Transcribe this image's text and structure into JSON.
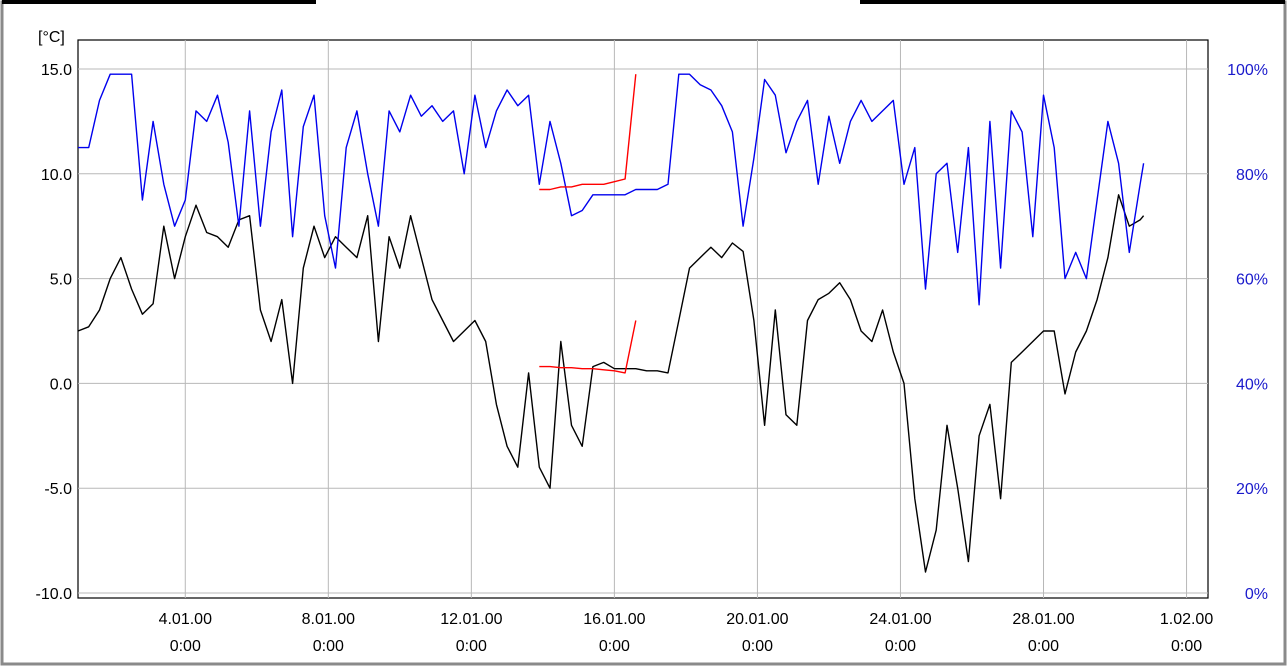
{
  "chart_data": {
    "type": "line",
    "y_unit_label": "[°C]",
    "y_left_range": [
      -10,
      15
    ],
    "y_left_ticks": [
      "15.0",
      "10.0",
      "5.0",
      "0.0",
      "-5.0",
      "-10.0"
    ],
    "y_left_tick_values": [
      15,
      10,
      5,
      0,
      -5,
      -10
    ],
    "y_right_range": [
      0,
      100
    ],
    "y_right_ticks": [
      "100%",
      "80%",
      "60%",
      "40%",
      "20%",
      "0%"
    ],
    "y_right_tick_values": [
      100,
      80,
      60,
      40,
      20,
      0
    ],
    "x_range_days": [
      1,
      32.6
    ],
    "x_ticks": [
      {
        "date": "4.01.00",
        "time": "0:00",
        "day": 4
      },
      {
        "date": "8.01.00",
        "time": "0:00",
        "day": 8
      },
      {
        "date": "12.01.00",
        "time": "0:00",
        "day": 12
      },
      {
        "date": "16.01.00",
        "time": "0:00",
        "day": 16
      },
      {
        "date": "20.01.00",
        "time": "0:00",
        "day": 20
      },
      {
        "date": "24.01.00",
        "time": "0:00",
        "day": 24
      },
      {
        "date": "28.01.00",
        "time": "0:00",
        "day": 28
      },
      {
        "date": "1.02.00",
        "time": "0:00",
        "day": 32
      }
    ],
    "grid": true,
    "series": [
      {
        "axis": "left",
        "color": "#000000",
        "x": [
          1.0,
          1.3,
          1.6,
          1.9,
          2.2,
          2.5,
          2.8,
          3.1,
          3.4,
          3.7,
          4.0,
          4.3,
          4.6,
          4.9,
          5.2,
          5.5,
          5.8,
          6.1,
          6.4,
          6.7,
          7.0,
          7.3,
          7.6,
          7.9,
          8.2,
          8.5,
          8.8,
          9.1,
          9.4,
          9.7,
          10.0,
          10.3,
          10.6,
          10.9,
          11.2,
          11.5,
          11.8,
          12.1,
          12.4,
          12.7,
          13.0,
          13.3,
          13.6,
          13.9,
          14.2,
          14.5,
          14.8,
          15.1,
          15.4,
          15.7,
          16.0,
          16.3,
          16.6,
          16.9,
          17.2,
          17.5,
          17.8,
          18.1,
          18.4,
          18.7,
          19.0,
          19.3,
          19.6,
          19.9,
          20.2,
          20.5,
          20.8,
          21.1,
          21.4,
          21.7,
          22.0,
          22.3,
          22.6,
          22.9,
          23.2,
          23.5,
          23.8,
          24.1,
          24.4,
          24.7,
          25.0,
          25.3,
          25.6,
          25.9,
          26.2,
          26.5,
          26.8,
          27.1,
          27.4,
          27.7,
          28.0,
          28.3,
          28.6,
          28.9,
          29.2,
          29.5,
          29.8,
          30.1,
          30.4,
          30.7,
          30.8
        ],
        "y": [
          2.5,
          2.7,
          3.5,
          5.0,
          6.0,
          4.5,
          3.3,
          3.8,
          7.5,
          5.0,
          7.0,
          8.5,
          7.2,
          7.0,
          6.5,
          7.8,
          8.0,
          3.5,
          2.0,
          4.0,
          0.0,
          5.5,
          7.5,
          6.0,
          7.0,
          6.5,
          6.0,
          8.0,
          2.0,
          7.0,
          5.5,
          8.0,
          6.0,
          4.0,
          3.0,
          2.0,
          2.5,
          3.0,
          2.0,
          -1.0,
          -3.0,
          -4.0,
          0.5,
          -4.0,
          -5.0,
          2.0,
          -2.0,
          -3.0,
          0.8,
          1.0,
          0.7,
          0.7,
          0.7,
          0.6,
          0.6,
          0.5,
          3.0,
          5.5,
          6.0,
          6.5,
          6.0,
          6.7,
          6.3,
          3.0,
          -2.0,
          3.5,
          -1.5,
          -2.0,
          3.0,
          4.0,
          4.3,
          4.8,
          4.0,
          2.5,
          2.0,
          3.5,
          1.5,
          0.0,
          -5.5,
          -9.0,
          -7.0,
          -2.0,
          -5.0,
          -8.5,
          -2.5,
          -1.0,
          -5.5,
          1.0,
          1.5,
          2.0,
          2.5,
          2.5,
          -0.5,
          1.5,
          2.5,
          4.0,
          6.0,
          9.0,
          7.5,
          7.8,
          8.0
        ]
      },
      {
        "axis": "right",
        "color": "#0000ee",
        "x": [
          1.0,
          1.3,
          1.6,
          1.9,
          2.2,
          2.5,
          2.8,
          3.1,
          3.4,
          3.7,
          4.0,
          4.3,
          4.6,
          4.9,
          5.2,
          5.5,
          5.8,
          6.1,
          6.4,
          6.7,
          7.0,
          7.3,
          7.6,
          7.9,
          8.2,
          8.5,
          8.8,
          9.1,
          9.4,
          9.7,
          10.0,
          10.3,
          10.6,
          10.9,
          11.2,
          11.5,
          11.8,
          12.1,
          12.4,
          12.7,
          13.0,
          13.3,
          13.6,
          13.9,
          14.2,
          14.5,
          14.8,
          15.1,
          15.4,
          15.7,
          16.0,
          16.3,
          16.6,
          16.9,
          17.2,
          17.5,
          17.8,
          18.1,
          18.4,
          18.7,
          19.0,
          19.3,
          19.6,
          19.9,
          20.2,
          20.5,
          20.8,
          21.1,
          21.4,
          21.7,
          22.0,
          22.3,
          22.6,
          22.9,
          23.2,
          23.5,
          23.8,
          24.1,
          24.4,
          24.7,
          25.0,
          25.3,
          25.6,
          25.9,
          26.2,
          26.5,
          26.8,
          27.1,
          27.4,
          27.7,
          28.0,
          28.3,
          28.6,
          28.9,
          29.2,
          29.5,
          29.8,
          30.1,
          30.4,
          30.7,
          30.8
        ],
        "y": [
          85,
          85,
          94,
          99,
          99,
          99,
          75,
          90,
          78,
          70,
          75,
          92,
          90,
          95,
          86,
          70,
          92,
          70,
          88,
          96,
          68,
          89,
          95,
          72,
          62,
          85,
          92,
          80,
          70,
          92,
          88,
          95,
          91,
          93,
          90,
          92,
          80,
          95,
          85,
          92,
          96,
          93,
          95,
          78,
          90,
          82,
          72,
          73,
          76,
          76,
          76,
          76,
          77,
          77,
          77,
          78,
          99,
          99,
          97,
          96,
          93,
          88,
          70,
          83,
          98,
          95,
          84,
          90,
          94,
          78,
          91,
          82,
          90,
          94,
          90,
          92,
          94,
          78,
          85,
          58,
          80,
          82,
          65,
          85,
          55,
          90,
          62,
          92,
          88,
          68,
          95,
          85,
          60,
          65,
          60,
          75,
          90,
          82,
          65,
          78,
          82
        ]
      },
      {
        "axis": "left",
        "color": "#ff0000",
        "x": [
          13.9,
          14.2,
          14.5,
          14.8,
          15.1,
          15.4,
          15.7,
          16.0,
          16.3,
          16.6
        ],
        "y": [
          0.8,
          0.8,
          0.75,
          0.75,
          0.7,
          0.7,
          0.65,
          0.6,
          0.5,
          3.0
        ]
      },
      {
        "axis": "right",
        "color": "#ff0000",
        "x": [
          13.9,
          14.2,
          14.5,
          14.8,
          15.1,
          15.4,
          15.7,
          16.0,
          16.3,
          16.6
        ],
        "y": [
          77,
          77,
          77.5,
          77.5,
          78,
          78,
          78,
          78.5,
          79,
          99
        ]
      }
    ]
  }
}
